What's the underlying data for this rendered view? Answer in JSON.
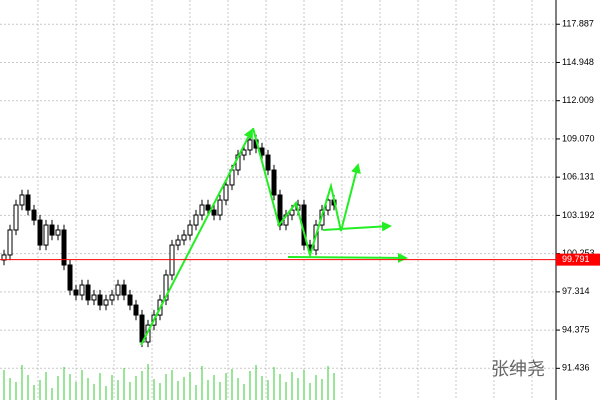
{
  "chart_data": {
    "type": "candlestick",
    "watermark": "张绅尧",
    "ylim": [
      89.0,
      119.75
    ],
    "yticks": [
      117.887,
      114.948,
      112.009,
      {
        "value": 109.07,
        "label": "109.070"
      },
      106.131,
      103.192,
      100.253,
      97.314,
      94.375,
      91.436
    ],
    "grid": true,
    "up_color": "#ffffff",
    "down_color": "#000000",
    "outline_color": "#000000",
    "current_price": 99.791,
    "current_price_color": "#ff0000",
    "volume_color": "#33cc33",
    "open": [
      99.76,
      100.15,
      102.07,
      103.99,
      104.76,
      103.6,
      102.83,
      100.91,
      102.45,
      101.68,
      102.07,
      99.38,
      97.45,
      97.07,
      97.84,
      96.69,
      97.07,
      96.3,
      96.69,
      97.07,
      97.84,
      97.07,
      96.3,
      95.53,
      93.46,
      94.76,
      95.53,
      96.69,
      98.61,
      100.91,
      101.3,
      101.68,
      102.45,
      103.22,
      103.99,
      103.6,
      103.22,
      104.37,
      105.53,
      106.68,
      107.83,
      108.22,
      108.99,
      108.37,
      107.83,
      106.68,
      104.76,
      102.45,
      103.22,
      103.6,
      103.99,
      100.91,
      100.53,
      102.45,
      103.6,
      104.37
    ],
    "high": [
      100.55,
      102.47,
      104.39,
      105.16,
      105.16,
      104.0,
      103.23,
      102.85,
      102.85,
      102.47,
      102.47,
      99.78,
      97.85,
      98.24,
      98.24,
      97.47,
      97.47,
      97.09,
      97.47,
      98.24,
      98.24,
      97.47,
      96.7,
      95.93,
      95.16,
      95.93,
      97.09,
      99.01,
      101.31,
      101.7,
      102.08,
      102.85,
      103.62,
      104.39,
      104.39,
      104.0,
      104.77,
      105.93,
      107.08,
      108.23,
      108.62,
      109.39,
      109.39,
      108.77,
      108.23,
      107.08,
      105.16,
      103.62,
      104.0,
      104.39,
      104.39,
      101.31,
      102.85,
      104.0,
      104.77,
      104.77
    ],
    "low": [
      99.36,
      99.75,
      101.67,
      103.59,
      103.2,
      102.43,
      100.51,
      100.51,
      101.28,
      101.28,
      98.98,
      97.05,
      96.67,
      96.67,
      96.29,
      96.29,
      95.9,
      95.9,
      96.29,
      96.67,
      96.67,
      95.9,
      95.13,
      93.06,
      93.06,
      94.36,
      95.13,
      96.29,
      98.21,
      100.51,
      100.9,
      101.28,
      102.05,
      102.82,
      103.2,
      102.82,
      102.82,
      103.97,
      105.13,
      106.28,
      107.43,
      107.82,
      107.97,
      107.43,
      106.28,
      104.36,
      102.05,
      102.05,
      102.82,
      103.2,
      100.51,
      100.13,
      100.13,
      102.05,
      103.2,
      103.59
    ],
    "close": [
      100.15,
      102.07,
      103.99,
      104.76,
      103.6,
      102.83,
      100.91,
      102.45,
      101.68,
      102.07,
      99.38,
      97.45,
      97.07,
      97.84,
      96.69,
      97.07,
      96.3,
      96.69,
      97.07,
      97.84,
      97.07,
      96.3,
      95.53,
      93.46,
      94.76,
      95.53,
      96.69,
      98.61,
      100.91,
      101.3,
      101.68,
      102.45,
      103.22,
      103.99,
      103.6,
      103.22,
      104.37,
      105.53,
      106.68,
      107.83,
      108.22,
      108.99,
      108.37,
      107.83,
      106.68,
      104.76,
      102.45,
      103.22,
      103.6,
      103.99,
      100.91,
      100.53,
      102.45,
      103.6,
      104.37,
      103.99
    ],
    "volume": [
      30,
      22,
      18,
      35,
      25,
      15,
      20,
      28,
      12,
      24,
      33,
      26,
      18,
      30,
      22,
      16,
      27,
      14,
      25,
      20,
      32,
      18,
      24,
      29,
      36,
      21,
      17,
      26,
      30,
      19,
      23,
      28,
      15,
      34,
      20,
      25,
      18,
      27,
      31,
      22,
      16,
      29,
      35,
      24,
      20,
      33,
      26,
      18,
      28,
      22,
      30,
      17,
      25,
      21,
      34,
      27
    ]
  }
}
